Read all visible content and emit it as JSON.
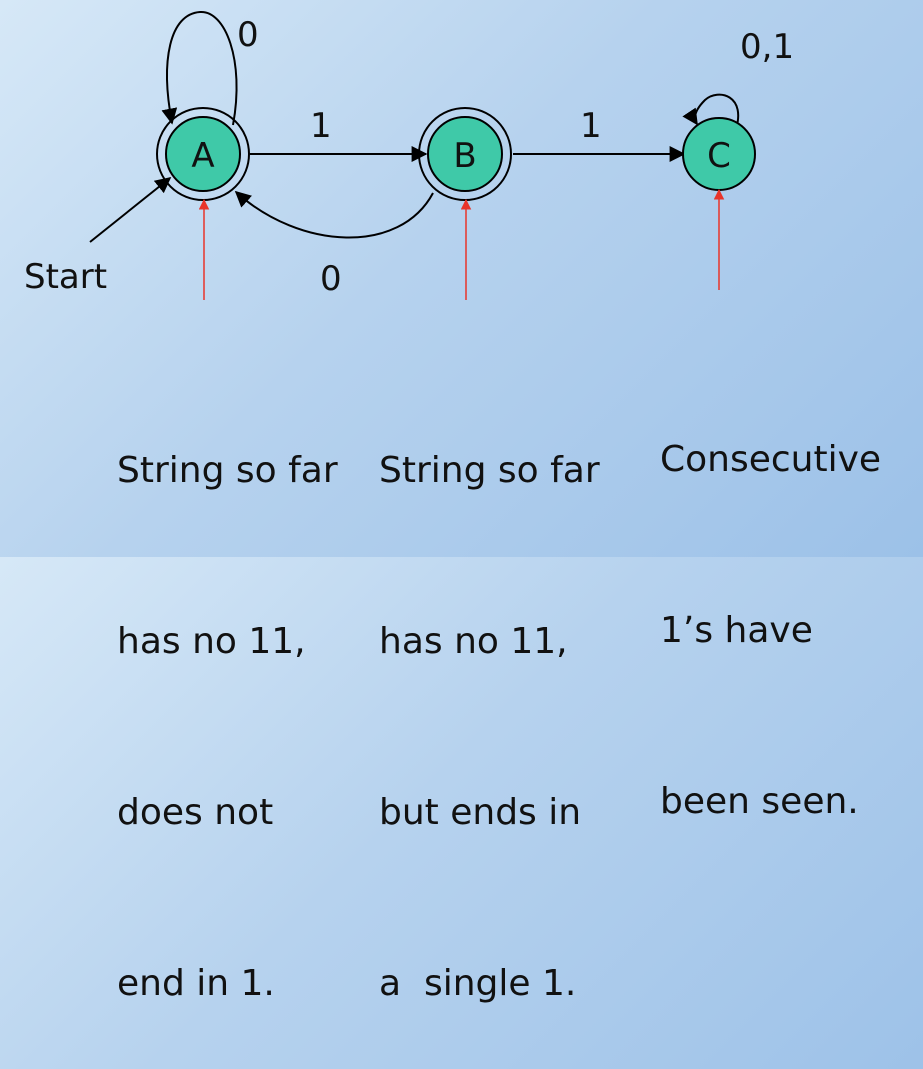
{
  "states": [
    {
      "id": "A",
      "label": "A",
      "accepting": true,
      "start": true
    },
    {
      "id": "B",
      "label": "B",
      "accepting": true,
      "start": false
    },
    {
      "id": "C",
      "label": "C",
      "accepting": false,
      "start": false
    }
  ],
  "transitions": [
    {
      "from": "A",
      "to": "A",
      "label": "0"
    },
    {
      "from": "A",
      "to": "B",
      "label": "1"
    },
    {
      "from": "B",
      "to": "A",
      "label": "0"
    },
    {
      "from": "B",
      "to": "C",
      "label": "1"
    },
    {
      "from": "C",
      "to": "C",
      "label": "0,1"
    }
  ],
  "start_label": "Start",
  "descriptions": {
    "A": [
      "String so far",
      "has no 11,",
      "does not",
      "end in 1."
    ],
    "B": [
      "String so far",
      "has no 11,",
      "but ends in",
      "a  single 1."
    ],
    "C": [
      "Consecutive",
      "1’s have",
      "been seen."
    ]
  },
  "colors": {
    "state_fill": "#3fc9a8",
    "state_stroke": "#000000",
    "pointer_line": "#e8342a"
  }
}
